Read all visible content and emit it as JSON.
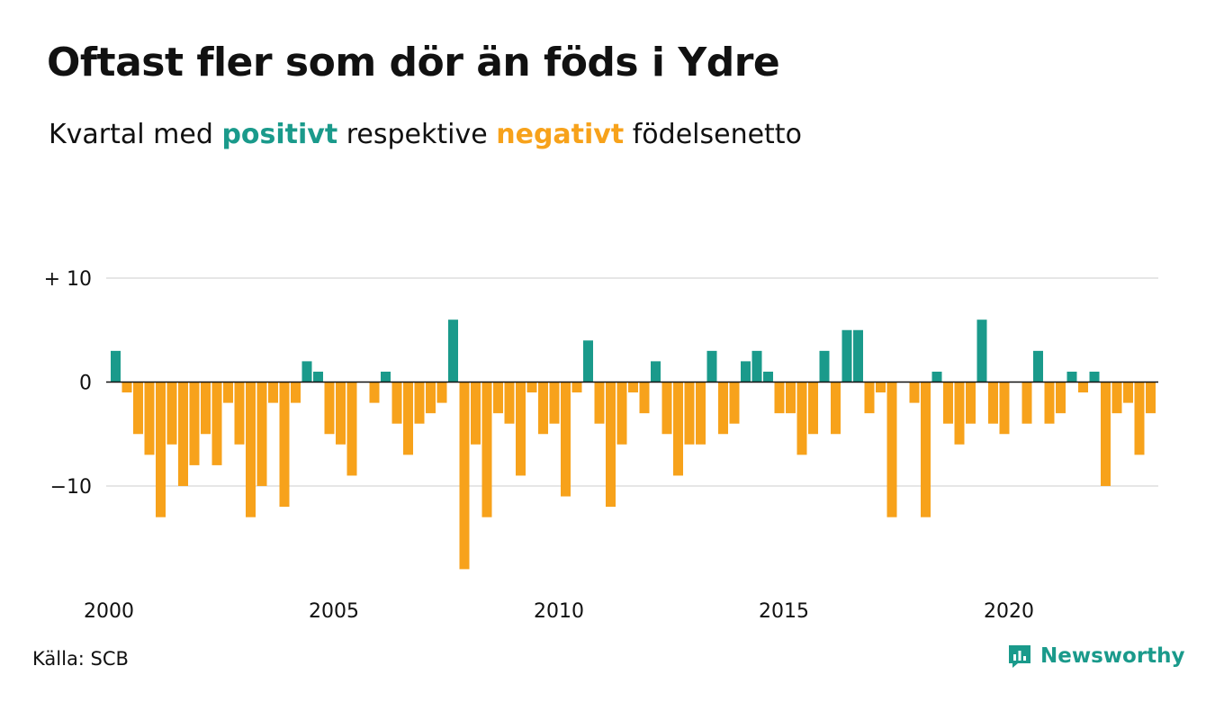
{
  "header": {
    "title": "Oftast fler som dör än föds i Ydre",
    "subtitle_pre": "Kvartal med",
    "subtitle_positive": "positivt",
    "subtitle_mid": "respektive",
    "subtitle_negative": "negativt",
    "subtitle_post": "födelsenetto"
  },
  "footer": {
    "source": "Källa: SCB",
    "brand": "Newsworthy"
  },
  "colors": {
    "positive": "#1a9a8b",
    "negative": "#f7a21b",
    "grid": "#dddddd",
    "axis": "#111111"
  },
  "chart_data": {
    "type": "bar",
    "x_start": "2000 Q1",
    "frequency": "quarterly",
    "values": [
      3,
      -1,
      -5,
      -7,
      -13,
      -6,
      -10,
      -8,
      -5,
      -8,
      -2,
      -6,
      -13,
      -10,
      -2,
      -12,
      -2,
      2,
      1,
      -5,
      -6,
      -9,
      0,
      -2,
      1,
      -4,
      -7,
      -4,
      -3,
      -2,
      6,
      -18,
      -6,
      -13,
      -3,
      -4,
      -9,
      -1,
      -5,
      -4,
      -11,
      -1,
      4,
      -4,
      -12,
      -6,
      -1,
      -3,
      2,
      -5,
      -9,
      -6,
      -6,
      3,
      -5,
      -4,
      2,
      3,
      1,
      -3,
      -3,
      -7,
      -5,
      3,
      -5,
      5,
      5,
      -3,
      -1,
      -13,
      0,
      -2,
      -13,
      1,
      -4,
      -6,
      -4,
      6,
      -4,
      -5,
      0,
      -4,
      3,
      -4,
      -3,
      1,
      -1,
      1,
      -10,
      -3,
      -2,
      -7,
      -3
    ],
    "x_tick_labels": [
      "2000",
      "2005",
      "2010",
      "2015",
      "2020"
    ],
    "y_tick_labels": [
      "+ 10",
      "0",
      "−10"
    ],
    "y_ticks": [
      10,
      0,
      -10
    ],
    "ylim": [
      -18,
      10
    ],
    "grid": true,
    "legend": "in subtitle"
  }
}
